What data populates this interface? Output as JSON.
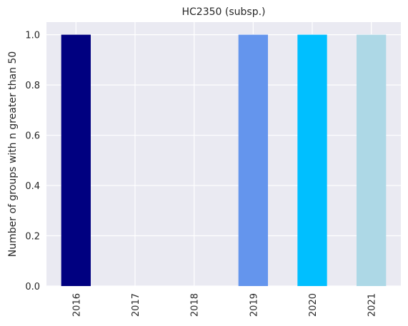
{
  "chart_data": {
    "type": "bar",
    "title": "HC2350 (subsp.)",
    "xlabel": "",
    "ylabel": "Number of groups with n greater than 50",
    "categories": [
      "2016",
      "2017",
      "2018",
      "2019",
      "2020",
      "2021"
    ],
    "values": [
      1.0,
      0.0,
      0.0,
      1.0,
      1.0,
      1.0
    ],
    "colors": [
      "#000080",
      "#000080",
      "#000080",
      "#6495ED",
      "#00BFFF",
      "#ADD8E6"
    ],
    "ylim": [
      0,
      1.05
    ],
    "yticks": [
      "0.0",
      "0.2",
      "0.4",
      "0.6",
      "0.8",
      "1.0"
    ],
    "grid": true,
    "legend": "none",
    "background": "#EAEAF2",
    "grid_color": "#FFFFFF"
  }
}
